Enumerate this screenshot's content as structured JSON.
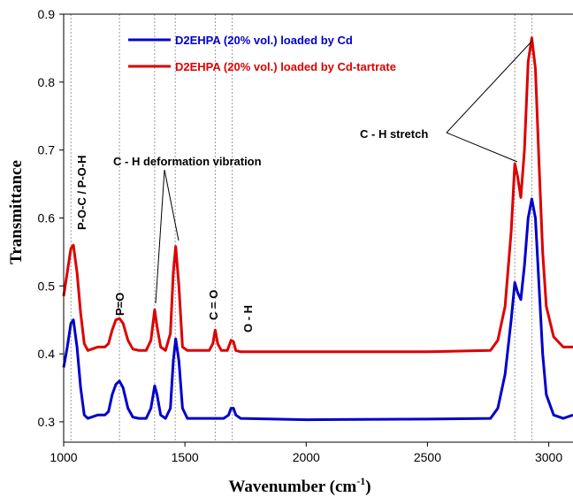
{
  "chart_data": {
    "type": "line",
    "xlabel": "Wavenumber (cm",
    "xlabel_sup": "-1",
    "xlabel_suffix": ")",
    "ylabel": "Transmittance",
    "xlim": [
      1000,
      3100
    ],
    "ylim": [
      0.27,
      0.9
    ],
    "x_ticks": [
      1000,
      1500,
      2000,
      2500,
      3000
    ],
    "y_ticks": [
      0.3,
      0.4,
      0.5,
      0.6,
      0.7,
      0.8,
      0.9
    ],
    "grid": false,
    "legend_position": "top-left",
    "reference_lines_x": [
      1030,
      1230,
      1375,
      1460,
      1625,
      1695,
      2860,
      2930
    ],
    "series": [
      {
        "name": "D2EHPA (20% vol.) loaded by Cd",
        "color": "#0000cc",
        "points": [
          [
            1000,
            0.38
          ],
          [
            1015,
            0.41
          ],
          [
            1030,
            0.445
          ],
          [
            1040,
            0.45
          ],
          [
            1055,
            0.41
          ],
          [
            1070,
            0.35
          ],
          [
            1085,
            0.31
          ],
          [
            1100,
            0.305
          ],
          [
            1140,
            0.31
          ],
          [
            1170,
            0.31
          ],
          [
            1185,
            0.315
          ],
          [
            1200,
            0.34
          ],
          [
            1215,
            0.355
          ],
          [
            1230,
            0.36
          ],
          [
            1245,
            0.35
          ],
          [
            1265,
            0.32
          ],
          [
            1285,
            0.307
          ],
          [
            1310,
            0.305
          ],
          [
            1340,
            0.305
          ],
          [
            1360,
            0.32
          ],
          [
            1375,
            0.353
          ],
          [
            1385,
            0.34
          ],
          [
            1400,
            0.31
          ],
          [
            1420,
            0.305
          ],
          [
            1440,
            0.32
          ],
          [
            1452,
            0.39
          ],
          [
            1462,
            0.422
          ],
          [
            1475,
            0.39
          ],
          [
            1490,
            0.32
          ],
          [
            1510,
            0.305
          ],
          [
            1600,
            0.305
          ],
          [
            1660,
            0.305
          ],
          [
            1680,
            0.31
          ],
          [
            1690,
            0.32
          ],
          [
            1700,
            0.32
          ],
          [
            1710,
            0.31
          ],
          [
            1730,
            0.305
          ],
          [
            2000,
            0.303
          ],
          [
            2500,
            0.304
          ],
          [
            2760,
            0.305
          ],
          [
            2790,
            0.32
          ],
          [
            2820,
            0.37
          ],
          [
            2845,
            0.45
          ],
          [
            2860,
            0.505
          ],
          [
            2872,
            0.49
          ],
          [
            2885,
            0.48
          ],
          [
            2900,
            0.53
          ],
          [
            2915,
            0.6
          ],
          [
            2930,
            0.628
          ],
          [
            2945,
            0.6
          ],
          [
            2960,
            0.5
          ],
          [
            2975,
            0.4
          ],
          [
            2990,
            0.34
          ],
          [
            3020,
            0.31
          ],
          [
            3060,
            0.305
          ],
          [
            3100,
            0.31
          ]
        ]
      },
      {
        "name": "D2EHPA (20% vol.) loaded by Cd-tartrate",
        "color": "#dd0000",
        "points": [
          [
            1000,
            0.485
          ],
          [
            1015,
            0.52
          ],
          [
            1030,
            0.555
          ],
          [
            1040,
            0.56
          ],
          [
            1055,
            0.52
          ],
          [
            1070,
            0.46
          ],
          [
            1085,
            0.415
          ],
          [
            1100,
            0.405
          ],
          [
            1140,
            0.41
          ],
          [
            1170,
            0.41
          ],
          [
            1185,
            0.415
          ],
          [
            1200,
            0.435
          ],
          [
            1215,
            0.45
          ],
          [
            1230,
            0.452
          ],
          [
            1245,
            0.445
          ],
          [
            1265,
            0.42
          ],
          [
            1285,
            0.407
          ],
          [
            1310,
            0.405
          ],
          [
            1340,
            0.405
          ],
          [
            1360,
            0.42
          ],
          [
            1375,
            0.465
          ],
          [
            1385,
            0.44
          ],
          [
            1400,
            0.41
          ],
          [
            1420,
            0.405
          ],
          [
            1440,
            0.43
          ],
          [
            1452,
            0.52
          ],
          [
            1462,
            0.558
          ],
          [
            1475,
            0.5
          ],
          [
            1490,
            0.41
          ],
          [
            1510,
            0.405
          ],
          [
            1600,
            0.405
          ],
          [
            1615,
            0.415
          ],
          [
            1625,
            0.435
          ],
          [
            1635,
            0.415
          ],
          [
            1650,
            0.405
          ],
          [
            1675,
            0.405
          ],
          [
            1690,
            0.42
          ],
          [
            1700,
            0.418
          ],
          [
            1710,
            0.405
          ],
          [
            1730,
            0.403
          ],
          [
            2000,
            0.403
          ],
          [
            2500,
            0.403
          ],
          [
            2760,
            0.405
          ],
          [
            2790,
            0.42
          ],
          [
            2820,
            0.47
          ],
          [
            2845,
            0.58
          ],
          [
            2860,
            0.68
          ],
          [
            2872,
            0.66
          ],
          [
            2885,
            0.63
          ],
          [
            2900,
            0.7
          ],
          [
            2915,
            0.83
          ],
          [
            2930,
            0.865
          ],
          [
            2945,
            0.82
          ],
          [
            2960,
            0.68
          ],
          [
            2975,
            0.55
          ],
          [
            2990,
            0.47
          ],
          [
            3020,
            0.425
          ],
          [
            3060,
            0.41
          ],
          [
            3100,
            0.41
          ]
        ]
      }
    ],
    "annotations": [
      {
        "text": "P-O-C / P-O-H",
        "rotated": true
      },
      {
        "text": "P=O",
        "rotated": true
      },
      {
        "text": "C - H deformation vibration",
        "rotated": false
      },
      {
        "text": "C = O",
        "rotated": true
      },
      {
        "text": "O - H",
        "rotated": true
      },
      {
        "text": "C - H stretch",
        "rotated": false
      }
    ]
  }
}
